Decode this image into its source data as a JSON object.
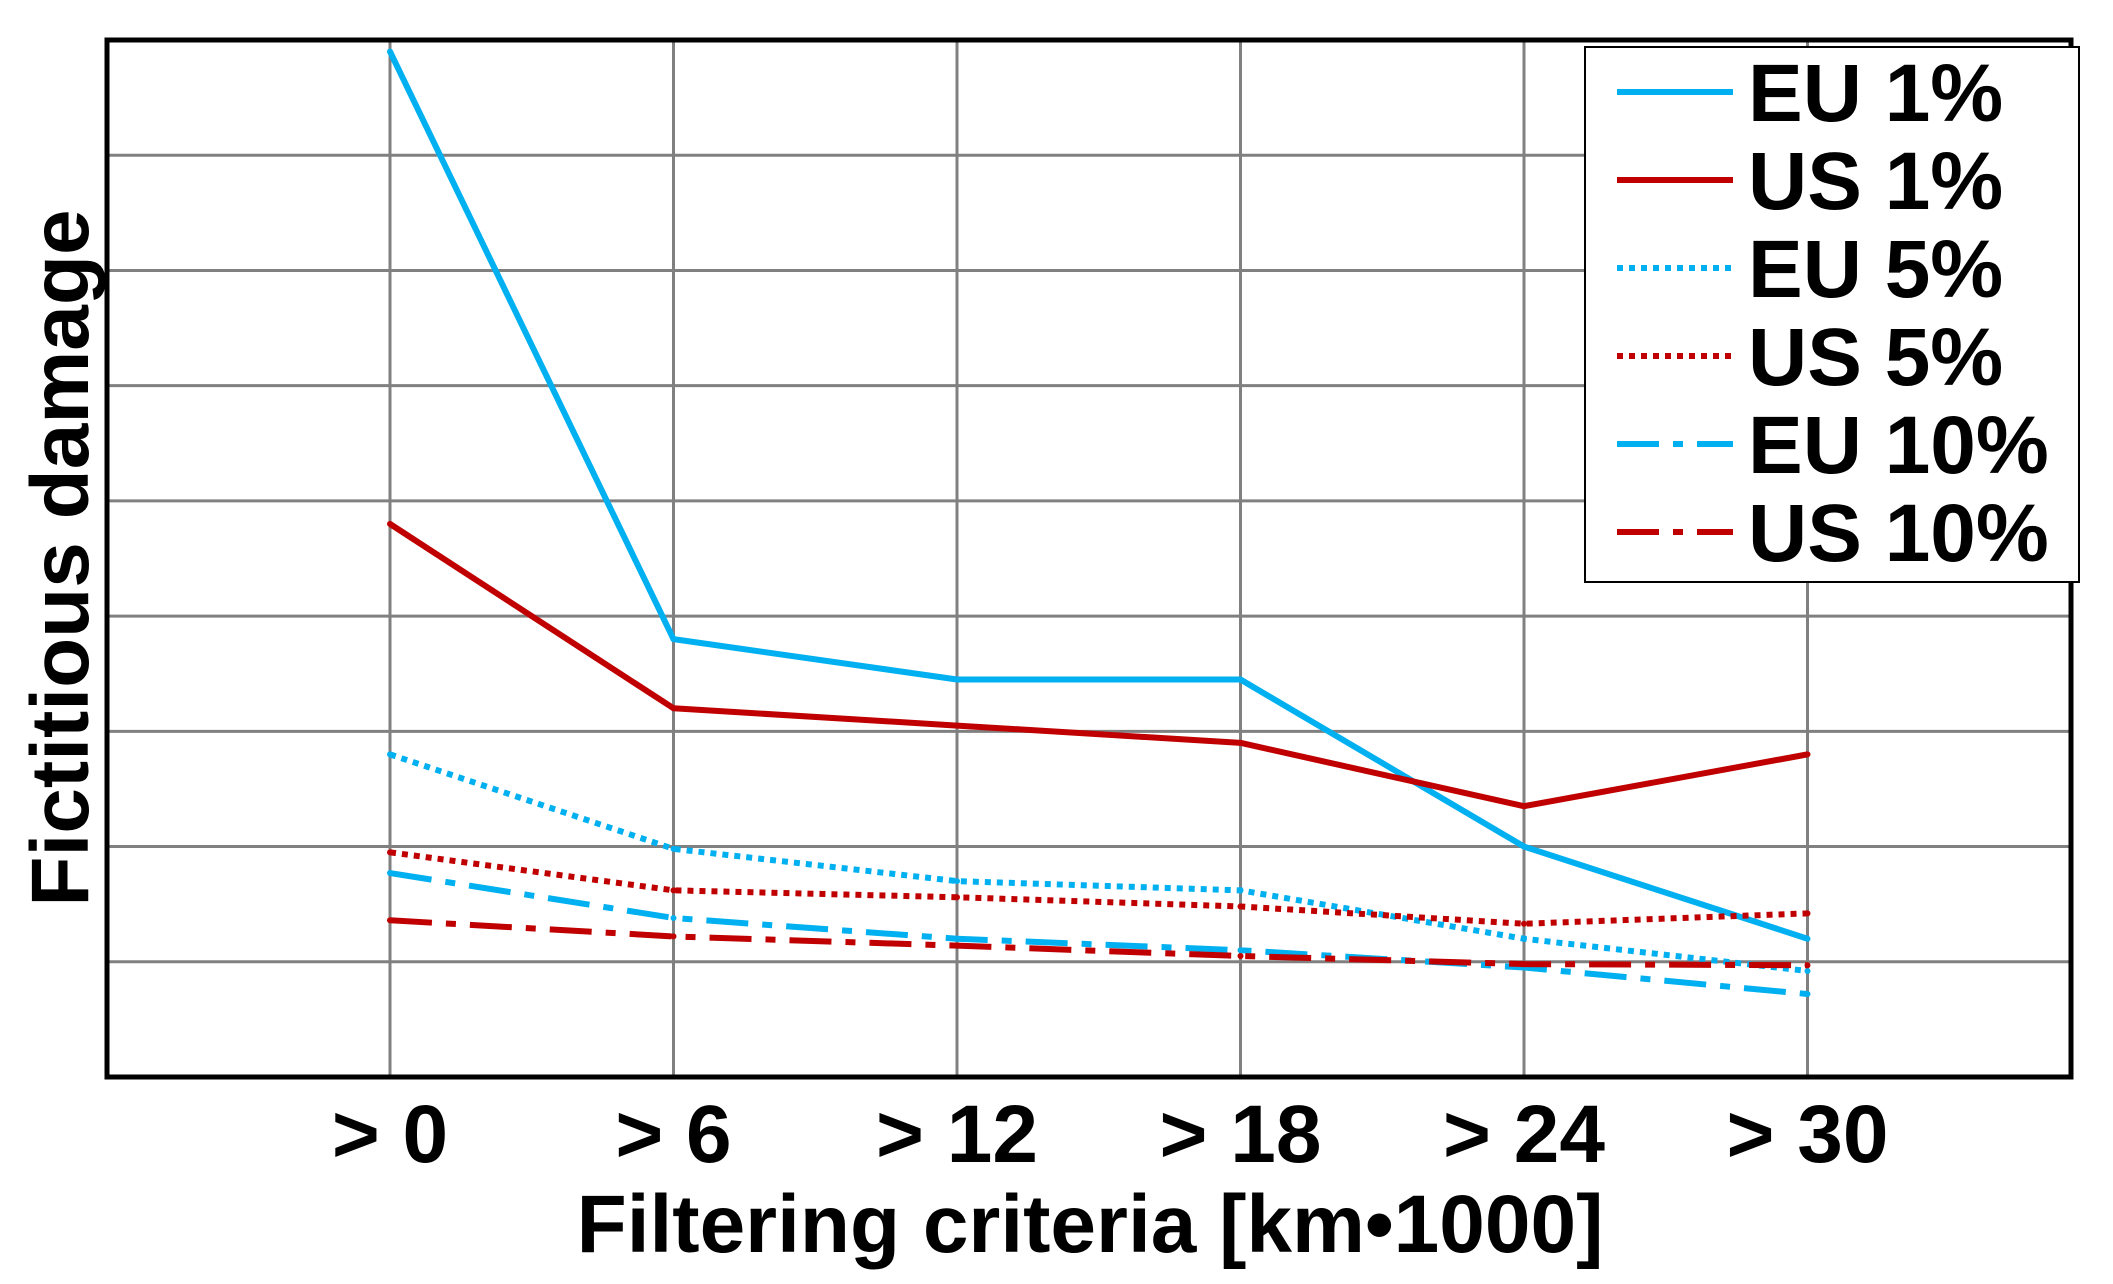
{
  "chart_data": {
    "type": "line",
    "title": "",
    "xlabel": "Filtering criteria [km•1000]",
    "ylabel": "Fictitious damage",
    "categories": [
      "> 0",
      "> 6",
      "> 12",
      "> 18",
      "> 24",
      "> 30"
    ],
    "ylim": [
      0,
      9
    ],
    "y_gridlines": 9,
    "y_tick_labels": false,
    "grid": true,
    "legend_position": "top-right",
    "series": [
      {
        "name": "EU 1%",
        "color": "#00b0f0",
        "dash": "solid",
        "values": [
          8.9,
          3.8,
          3.45,
          3.45,
          2.0,
          1.2
        ]
      },
      {
        "name": "US 1%",
        "color": "#c00000",
        "dash": "solid",
        "values": [
          4.8,
          3.2,
          3.05,
          2.9,
          2.35,
          2.8
        ]
      },
      {
        "name": "EU 5%",
        "color": "#00b0f0",
        "dash": "dotted",
        "values": [
          2.8,
          1.98,
          1.7,
          1.62,
          1.2,
          0.92
        ]
      },
      {
        "name": "US 5%",
        "color": "#c00000",
        "dash": "dotted",
        "values": [
          1.95,
          1.62,
          1.56,
          1.48,
          1.33,
          1.42
        ]
      },
      {
        "name": "EU 10%",
        "color": "#00b0f0",
        "dash": "dashdot",
        "values": [
          1.77,
          1.38,
          1.2,
          1.1,
          0.95,
          0.72
        ]
      },
      {
        "name": "US 10%",
        "color": "#c00000",
        "dash": "dashdot",
        "values": [
          1.36,
          1.22,
          1.14,
          1.05,
          0.98,
          0.97
        ]
      }
    ]
  }
}
